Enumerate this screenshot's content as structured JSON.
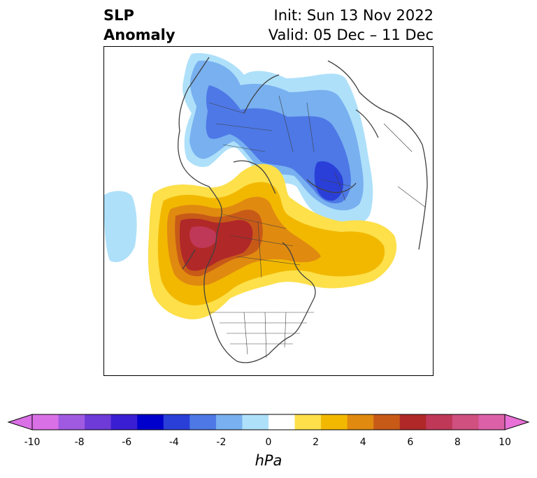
{
  "header": {
    "title_line1": "SLP",
    "title_line2": "Anomaly",
    "init": "Init: Sun 13 Nov 2022",
    "valid": "Valid: 05 Dec – 11 Dec"
  },
  "colorbar": {
    "units": "hPa",
    "min": -10,
    "max": 10,
    "ticks": [
      "-10",
      "-8",
      "-6",
      "-4",
      "-2",
      "0",
      "2",
      "4",
      "6",
      "8",
      "10"
    ],
    "colors": [
      "#da70e6",
      "#a05ae2",
      "#6e3ad8",
      "#3a1ed4",
      "#0000cc",
      "#2a3fd8",
      "#4d78e6",
      "#78b0f0",
      "#aee0fa",
      "#ffffff",
      "#fde04a",
      "#f2b800",
      "#e08a10",
      "#c85a18",
      "#b02828",
      "#c03858",
      "#d05080",
      "#dc60a8"
    ],
    "extend_min_color": "#da70e6",
    "extend_max_color": "#e870d6"
  },
  "map": {
    "projection": "polar stereographic (North Pole)",
    "region": "Northern Hemisphere / North America"
  }
}
